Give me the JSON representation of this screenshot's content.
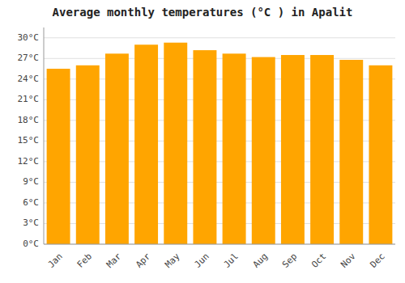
{
  "chart_data": {
    "type": "bar",
    "title": "Average monthly temperatures (°C ) in Apalit",
    "categories": [
      "Jan",
      "Feb",
      "Mar",
      "Apr",
      "May",
      "Jun",
      "Jul",
      "Aug",
      "Sep",
      "Oct",
      "Nov",
      "Dec"
    ],
    "values": [
      25.5,
      26.0,
      27.7,
      29.0,
      29.3,
      28.2,
      27.7,
      27.2,
      27.5,
      27.5,
      26.8,
      26.0
    ],
    "color": "#FFA500",
    "ylim": [
      0,
      31.5
    ],
    "yticks": [
      {
        "value": 0,
        "label": "0°C"
      },
      {
        "value": 3,
        "label": "3°C"
      },
      {
        "value": 6,
        "label": "6°C"
      },
      {
        "value": 9,
        "label": "9°C"
      },
      {
        "value": 12,
        "label": "12°C"
      },
      {
        "value": 15,
        "label": "15°C"
      },
      {
        "value": 18,
        "label": "18°C"
      },
      {
        "value": 21,
        "label": "21°C"
      },
      {
        "value": 24,
        "label": "24°C"
      },
      {
        "value": 27,
        "label": "27°C"
      },
      {
        "value": 30,
        "label": "30°C"
      }
    ],
    "grid": true
  }
}
